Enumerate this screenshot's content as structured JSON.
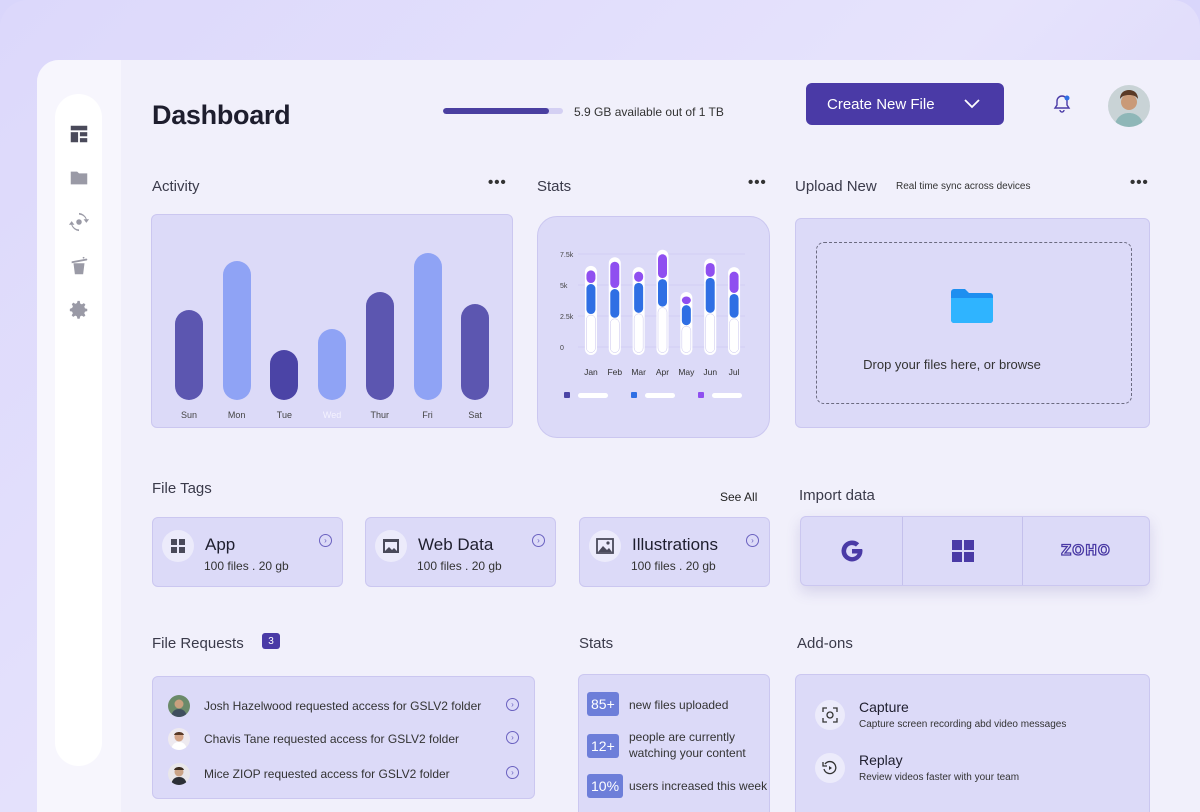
{
  "header": {
    "title": "Dashboard",
    "storage_text": "5.9 GB available out of 1 TB",
    "storage_fraction": 0.88,
    "create_button_label": "Create New File"
  },
  "sidebar": {
    "items": [
      {
        "icon": "dashboard-icon"
      },
      {
        "icon": "folder-icon"
      },
      {
        "icon": "sync-icon"
      },
      {
        "icon": "trash-icon"
      },
      {
        "icon": "gear-icon"
      }
    ]
  },
  "activity": {
    "title": "Activity",
    "bars": [
      {
        "day": "Sun",
        "value": 0.58,
        "color": "#5c56b0"
      },
      {
        "day": "Mon",
        "value": 0.9,
        "color": "#8fa3f5"
      },
      {
        "day": "Tue",
        "value": 0.32,
        "color": "#4b44a6"
      },
      {
        "day": "Wed",
        "value": 0.46,
        "color": "#8fa3f5"
      },
      {
        "day": "Thur",
        "value": 0.7,
        "color": "#5c56b0"
      },
      {
        "day": "Fri",
        "value": 0.95,
        "color": "#8fa3f5"
      },
      {
        "day": "Sat",
        "value": 0.62,
        "color": "#5c56b0"
      }
    ]
  },
  "stats_chart": {
    "title": "Stats",
    "chart_data": {
      "type": "bar",
      "categories": [
        "Jan",
        "Feb",
        "Mar",
        "Apr",
        "May",
        "Jun",
        "Jul"
      ],
      "yticks": [
        "7.5k",
        "5k",
        "2.5k",
        "0"
      ],
      "ylim": [
        0,
        7500
      ],
      "series": [
        {
          "values": [
            3100,
            2800,
            3200,
            3700,
            2200,
            3200,
            2800
          ],
          "color": "#ffffff"
        },
        {
          "values": [
            2500,
            2400,
            2500,
            2300,
            1700,
            2900,
            2000
          ],
          "color": "#2f6fe4"
        },
        {
          "values": [
            1100,
            2200,
            900,
            2000,
            700,
            1200,
            1800
          ],
          "color": "#8f4ff0"
        }
      ],
      "legend_colors": [
        "#4b44a6",
        "#2f6fe4",
        "#8f4ff0"
      ]
    }
  },
  "upload": {
    "title": "Upload New",
    "subtitle": "Real time sync across devices",
    "drop_text": "Drop your files here, or browse"
  },
  "file_tags": {
    "title": "File Tags",
    "see_all": "See All",
    "items": [
      {
        "name": "App",
        "meta": "100 files . 20 gb",
        "icon": "grid-icon"
      },
      {
        "name": "Web Data",
        "meta": "100 files . 20 gb",
        "icon": "web-icon"
      },
      {
        "name": "Illustrations",
        "meta": "100 files . 20 gb",
        "icon": "image-icon"
      }
    ]
  },
  "import": {
    "title": "Import data",
    "providers": [
      "google",
      "windows",
      "zoho"
    ],
    "zoho_label": "ZOHO"
  },
  "file_requests": {
    "title": "File Requests",
    "count": "3",
    "items": [
      {
        "text": "Josh Hazelwood requested access for GSLV2 folder"
      },
      {
        "text": "Chavis Tane requested access for GSLV2 folder"
      },
      {
        "text": "Mice ZIOP requested access for GSLV2 folder"
      }
    ]
  },
  "stats_list": {
    "title": "Stats",
    "items": [
      {
        "badge": "85+",
        "text": "new files uploaded"
      },
      {
        "badge": "12+",
        "text_line1": "people are currently",
        "text_line2": "watching your content"
      },
      {
        "badge": "10%",
        "text": "users increased this week"
      }
    ]
  },
  "addons": {
    "title": "Add-ons",
    "items": [
      {
        "title": "Capture",
        "desc": "Capture screen recording abd video messages"
      },
      {
        "title": "Replay",
        "desc": "Review videos faster with your team"
      }
    ]
  }
}
